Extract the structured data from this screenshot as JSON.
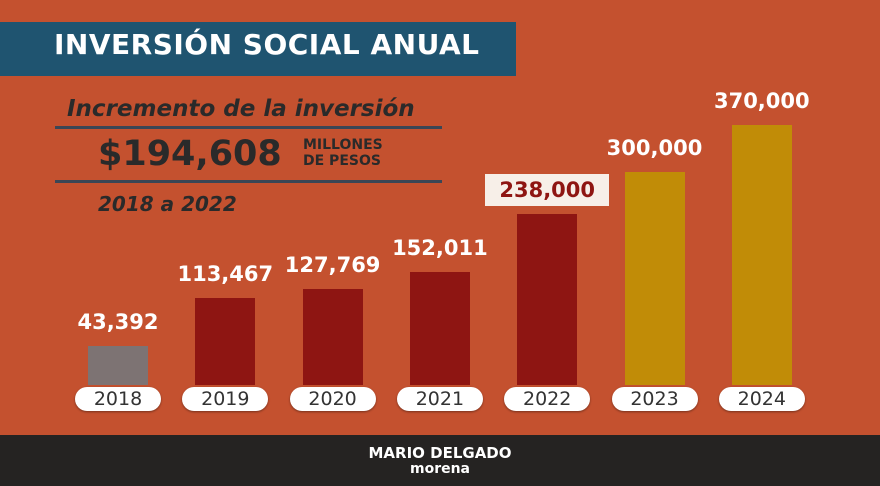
{
  "header": {
    "title": "INVERSIÓN SOCIAL ANUAL"
  },
  "summary": {
    "heading": "Incremento de la inversión",
    "amount": "$194,608",
    "unit_line1": "MILLONES",
    "unit_line2": "DE PESOS",
    "period": "2018 a 2022"
  },
  "chart_data": {
    "type": "bar",
    "title": "INVERSIÓN SOCIAL ANUAL",
    "categories": [
      "2018",
      "2019",
      "2020",
      "2021",
      "2022",
      "2023",
      "2024"
    ],
    "values": [
      43392,
      113467,
      127769,
      152011,
      238000,
      300000,
      370000
    ],
    "labels": [
      "43,392",
      "113,467",
      "127,769",
      "152,011",
      "238,000",
      "300,000",
      "370,000"
    ],
    "colors": [
      "#7d7373",
      "#8e1512",
      "#8e1512",
      "#8e1512",
      "#8e1512",
      "#c18c07",
      "#c18c07"
    ],
    "highlighted": "2022",
    "grid": false,
    "xlabel": "",
    "ylabel": ""
  },
  "footer": {
    "name": "MARIO DELGADO",
    "party": "morena"
  }
}
